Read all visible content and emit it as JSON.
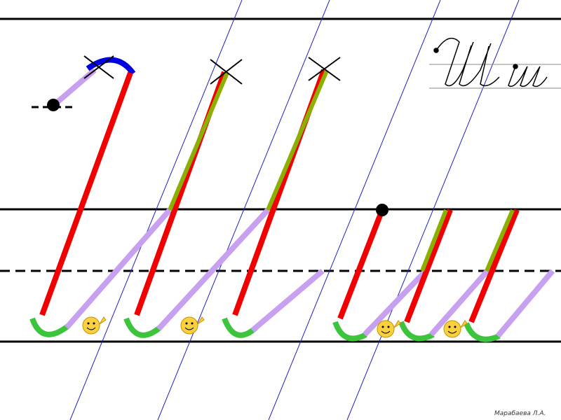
{
  "author": "Марабаева Л.А."
}
